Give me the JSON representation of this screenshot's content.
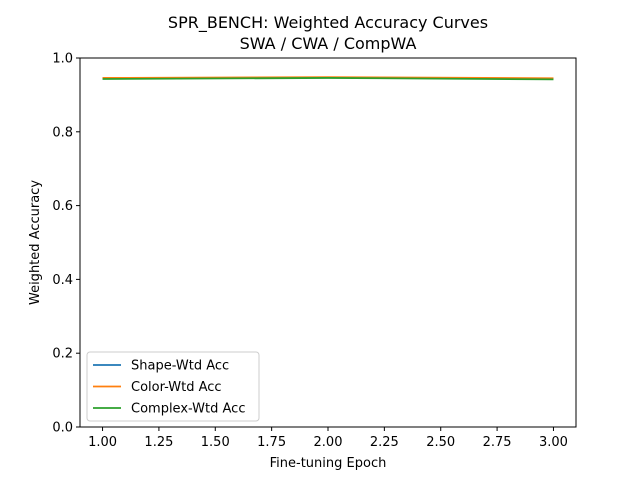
{
  "chart_data": {
    "type": "line",
    "title": "SPR_BENCH: Weighted Accuracy Curves",
    "subtitle": "SWA / CWA / CompWA",
    "xlabel": "Fine-tuning Epoch",
    "ylabel": "Weighted Accuracy",
    "xlim": [
      0.9,
      3.1
    ],
    "ylim": [
      0.0,
      1.0
    ],
    "xticks": [
      "1.00",
      "1.25",
      "1.50",
      "1.75",
      "2.00",
      "2.25",
      "2.50",
      "2.75",
      "3.00"
    ],
    "yticks": [
      "0.0",
      "0.2",
      "0.4",
      "0.6",
      "0.8",
      "1.0"
    ],
    "grid": false,
    "legend_position": "lower-left",
    "x": [
      1,
      2,
      3
    ],
    "series": [
      {
        "name": "Shape-Wtd Acc",
        "color": "#1f77b4",
        "values": [
          0.945,
          0.947,
          0.944
        ]
      },
      {
        "name": "Color-Wtd Acc",
        "color": "#ff7f0e",
        "values": [
          0.946,
          0.948,
          0.945
        ]
      },
      {
        "name": "Complex-Wtd Acc",
        "color": "#2ca02c",
        "values": [
          0.943,
          0.946,
          0.942
        ]
      }
    ]
  }
}
